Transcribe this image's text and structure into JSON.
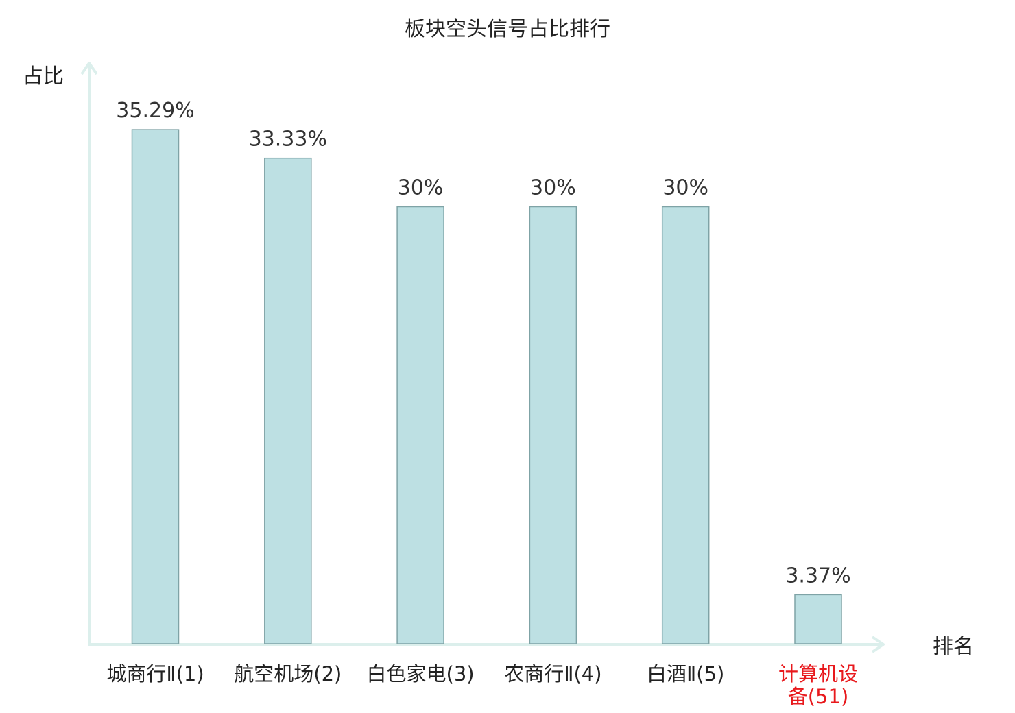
{
  "chart_data": {
    "type": "bar",
    "title": "板块空头信号占比排行",
    "xlabel": "排名",
    "ylabel": "占比",
    "categories": [
      [
        "城商行Ⅱ(1)"
      ],
      [
        "航空机场(2)"
      ],
      [
        "白色家电(3)"
      ],
      [
        "农商行Ⅱ(4)"
      ],
      [
        "白酒Ⅱ(5)"
      ],
      [
        "计算机设",
        "备(51)"
      ]
    ],
    "values": [
      35.29,
      33.33,
      30,
      30,
      30,
      3.37
    ],
    "value_labels": [
      "35.29%",
      "33.33%",
      "30%",
      "30%",
      "30%",
      "3.37%"
    ],
    "highlight_index": 5,
    "ylim": [
      0,
      40
    ],
    "grid": false,
    "colors": {
      "bar_fill": "#bde0e3",
      "bar_stroke": "#7fa3a6",
      "axis": "#dcefec",
      "highlight_text": "#e8191d",
      "text": "#222222"
    }
  }
}
